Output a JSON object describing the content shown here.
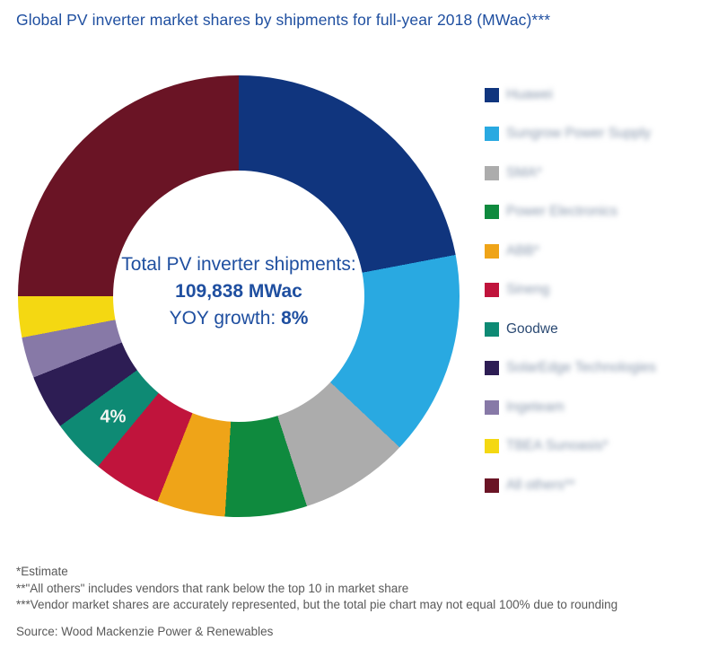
{
  "title": "Global PV inverter market shares by shipments for full-year 2018 (MWac)***",
  "donut_center": {
    "line1": "Total PV inverter shipments:",
    "line2": "109,838 MWac",
    "line3_label": "YOY growth:",
    "line3_value": "8%"
  },
  "slice_label": {
    "text": "4%",
    "segment": "Goodwe"
  },
  "legend": {
    "items": [
      {
        "label": "Huawei",
        "color": "#10357E",
        "blurred": true
      },
      {
        "label": "Sungrow Power Supply",
        "color": "#29A9E1",
        "blurred": true
      },
      {
        "label": "SMA*",
        "color": "#ACACAC",
        "blurred": true
      },
      {
        "label": "Power Electronics",
        "color": "#0F8A3E",
        "blurred": true
      },
      {
        "label": "ABB*",
        "color": "#EFA418",
        "blurred": true
      },
      {
        "label": "Sineng",
        "color": "#C0143C",
        "blurred": true
      },
      {
        "label": "Goodwe",
        "color": "#0E8A74",
        "blurred": false
      },
      {
        "label": "SolarEdge Technologies",
        "color": "#2D1D54",
        "blurred": true
      },
      {
        "label": "Ingeteam",
        "color": "#8779A7",
        "blurred": true
      },
      {
        "label": "TBEA Sunoasis*",
        "color": "#F4D812",
        "blurred": true
      },
      {
        "label": "All others**",
        "color": "#6A1425",
        "blurred": true
      }
    ]
  },
  "footnotes": {
    "notes": [
      "*Estimate",
      "**\"All others\" includes vendors that rank below the top 10 in market share",
      "***Vendor market shares are accurately represented, but the total pie chart may not equal 100% due to rounding"
    ],
    "source": "Source: Wood Mackenzie Power & Renewables"
  },
  "colors": {
    "accent_text": "#1F4FA0",
    "footnote_text": "#595959",
    "background": "#FFFFFF"
  },
  "chart_data": {
    "type": "pie",
    "subtype": "donut",
    "title": "Global PV inverter market shares by shipments for full-year 2018 (MWac)***",
    "categories": [
      "Huawei",
      "Sungrow Power Supply",
      "SMA*",
      "Power Electronics",
      "ABB*",
      "Sineng",
      "Goodwe",
      "SolarEdge Technologies",
      "Ingeteam",
      "TBEA Sunoasis*",
      "All others**"
    ],
    "values": [
      22,
      15,
      8,
      6,
      5,
      5,
      4,
      4,
      3,
      3,
      25
    ],
    "unit": "percent of 109,838 MWac total",
    "values_note": "Only the Goodwe slice is labeled (4%); other shares estimated from arc angles",
    "colors": [
      "#10357E",
      "#29A9E1",
      "#ACACAC",
      "#0F8A3E",
      "#EFA418",
      "#C0143C",
      "#0E8A74",
      "#2D1D54",
      "#8779A7",
      "#F4D812",
      "#6A1425"
    ],
    "start_angle_deg": 0,
    "direction": "clockwise",
    "inner_radius_ratio": 0.57,
    "legend_position": "right",
    "center_label": "Total PV inverter shipments: 109,838 MWac / YOY growth: 8%",
    "total_value": "109,838 MWac",
    "yoy_growth": "8%"
  }
}
